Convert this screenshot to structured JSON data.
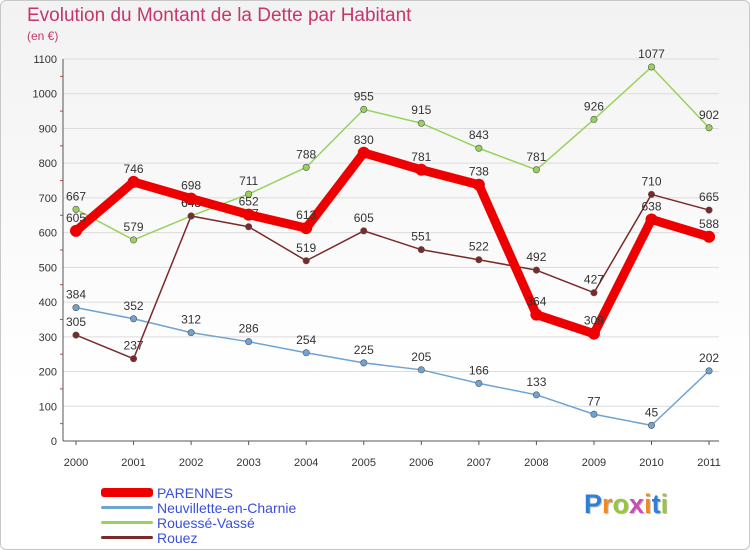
{
  "title": "Evolution du Montant de la Dette par Habitant",
  "unit": "(en €)",
  "logo": {
    "text": "Proxiti",
    "colors": [
      "#2f7fd6",
      "#f08a24",
      "#9ac43c",
      "#c94fb0",
      "#f08a24",
      "#2f7fd6",
      "#9ac43c"
    ]
  },
  "chart_data": {
    "type": "line",
    "x": [
      "2000",
      "2001",
      "2002",
      "2003",
      "2004",
      "2005",
      "2006",
      "2007",
      "2008",
      "2009",
      "2010",
      "2011"
    ],
    "ylim": [
      0,
      1100
    ],
    "yticks": [
      0,
      100,
      200,
      300,
      400,
      500,
      600,
      700,
      800,
      900,
      1000,
      1100
    ],
    "grid": true,
    "legend_position": "bottom-left",
    "series": [
      {
        "name": "Neuvillette-en-Charnie",
        "color": "#6ea3d2",
        "values": [
          384,
          352,
          312,
          286,
          254,
          225,
          205,
          166,
          133,
          77,
          45,
          202
        ],
        "bold": false
      },
      {
        "name": "Rouessé-Vassé",
        "color": "#97d35a",
        "values": [
          667,
          579,
          648,
          711,
          788,
          955,
          915,
          843,
          781,
          926,
          1077,
          902
        ],
        "bold": false
      },
      {
        "name": "Rouez",
        "color": "#7b2a2a",
        "values": [
          305,
          237,
          648,
          617,
          519,
          605,
          551,
          522,
          492,
          427,
          710,
          665
        ],
        "bold": false
      },
      {
        "name": "PARENNES",
        "color": "#ee0000",
        "values": [
          605,
          746,
          698,
          652,
          613,
          830,
          781,
          738,
          364,
          309,
          638,
          588
        ],
        "bold": true
      }
    ],
    "legend_order": [
      "PARENNES",
      "Neuvillette-en-Charnie",
      "Rouessé-Vassé",
      "Rouez"
    ]
  }
}
